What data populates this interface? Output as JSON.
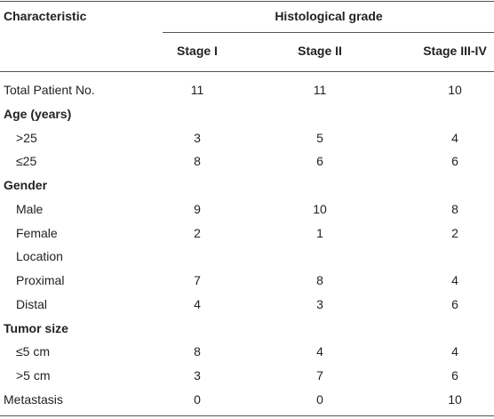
{
  "table": {
    "header": {
      "characteristic": "Characteristic",
      "group": "Histological grade",
      "columns": [
        "Stage I",
        "Stage II",
        "Stage III-IV"
      ]
    },
    "rows": [
      {
        "label": "Total Patient No.",
        "values": [
          11,
          11,
          10
        ]
      },
      {
        "label": "Age (years)"
      },
      {
        "label": ">25",
        "values": [
          3,
          5,
          4
        ]
      },
      {
        "label": "≤25",
        "values": [
          8,
          6,
          6
        ]
      },
      {
        "label": "Gender"
      },
      {
        "label": "Male",
        "values": [
          9,
          10,
          8
        ]
      },
      {
        "label": "Female",
        "values": [
          2,
          1,
          2
        ]
      },
      {
        "label": "Location"
      },
      {
        "label": "Proximal",
        "values": [
          7,
          8,
          4
        ]
      },
      {
        "label": "Distal",
        "values": [
          4,
          3,
          6
        ]
      },
      {
        "label": "Tumor size"
      },
      {
        "label": "≤5 cm",
        "values": [
          8,
          4,
          4
        ]
      },
      {
        "label": ">5 cm",
        "values": [
          3,
          7,
          6
        ]
      },
      {
        "label": "Metastasis",
        "values": [
          0,
          0,
          10
        ]
      }
    ]
  }
}
